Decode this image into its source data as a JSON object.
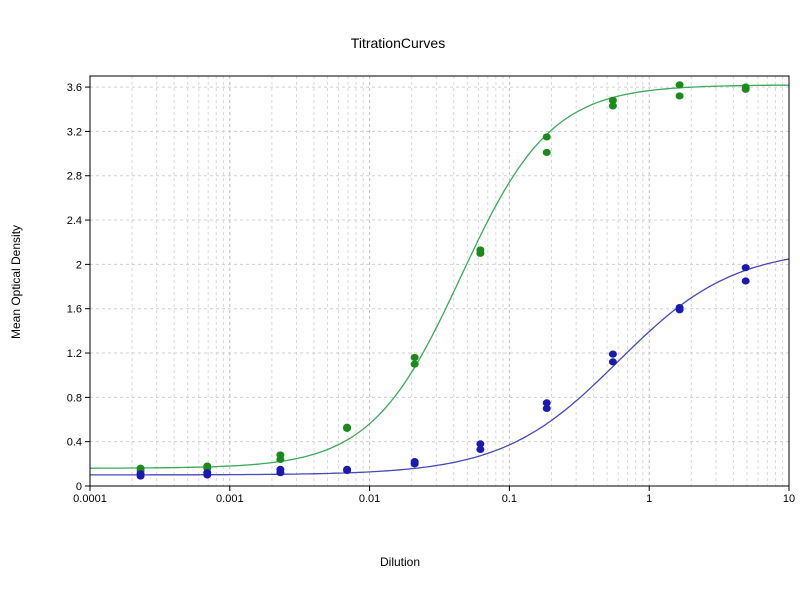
{
  "chart_data": {
    "type": "scatter",
    "title": "TitrationCurves",
    "xlabel": "Dilution",
    "ylabel": "Mean Optical Density",
    "x_scale": "log",
    "xlim": [
      0.0001,
      10
    ],
    "ylim": [
      0,
      3.7
    ],
    "x_ticks": [
      "0.0001",
      "0.001",
      "0.01",
      "0.1",
      "1",
      "10"
    ],
    "y_ticks": [
      "0",
      "0.4",
      "0.8",
      "1.2",
      "1.6",
      "2",
      "2.4",
      "2.8",
      "3.2",
      "3.6"
    ],
    "grid": true,
    "legend": "none",
    "series": [
      {
        "color": "#1a8a1a",
        "line_color": "#3aaa5a",
        "points": [
          [
            0.00023,
            0.14
          ],
          [
            0.00023,
            0.16
          ],
          [
            0.00069,
            0.16
          ],
          [
            0.00069,
            0.18
          ],
          [
            0.0023,
            0.24
          ],
          [
            0.0023,
            0.28
          ],
          [
            0.0069,
            0.52
          ],
          [
            0.0069,
            0.53
          ],
          [
            0.021,
            1.1
          ],
          [
            0.021,
            1.16
          ],
          [
            0.062,
            2.1
          ],
          [
            0.062,
            2.13
          ],
          [
            0.185,
            3.01
          ],
          [
            0.185,
            3.15
          ],
          [
            0.55,
            3.43
          ],
          [
            0.55,
            3.48
          ],
          [
            1.65,
            3.52
          ],
          [
            1.65,
            3.62
          ],
          [
            4.9,
            3.58
          ],
          [
            4.9,
            3.6
          ]
        ],
        "fit": {
          "bottom": 0.16,
          "top": 3.62,
          "ec50": 0.045,
          "hill": 1.35
        }
      },
      {
        "color": "#1a1ab0",
        "line_color": "#4848b8",
        "points": [
          [
            0.00023,
            0.09
          ],
          [
            0.00023,
            0.11
          ],
          [
            0.00069,
            0.1
          ],
          [
            0.00069,
            0.12
          ],
          [
            0.0023,
            0.12
          ],
          [
            0.0023,
            0.15
          ],
          [
            0.0069,
            0.14
          ],
          [
            0.0069,
            0.15
          ],
          [
            0.021,
            0.2
          ],
          [
            0.021,
            0.22
          ],
          [
            0.062,
            0.33
          ],
          [
            0.062,
            0.38
          ],
          [
            0.185,
            0.7
          ],
          [
            0.185,
            0.75
          ],
          [
            0.55,
            1.12
          ],
          [
            0.55,
            1.19
          ],
          [
            1.65,
            1.59
          ],
          [
            1.65,
            1.61
          ],
          [
            4.9,
            1.85
          ],
          [
            4.9,
            1.97
          ]
        ],
        "fit": {
          "bottom": 0.1,
          "top": 2.15,
          "ec50": 0.6,
          "hill": 1.05
        }
      }
    ]
  }
}
